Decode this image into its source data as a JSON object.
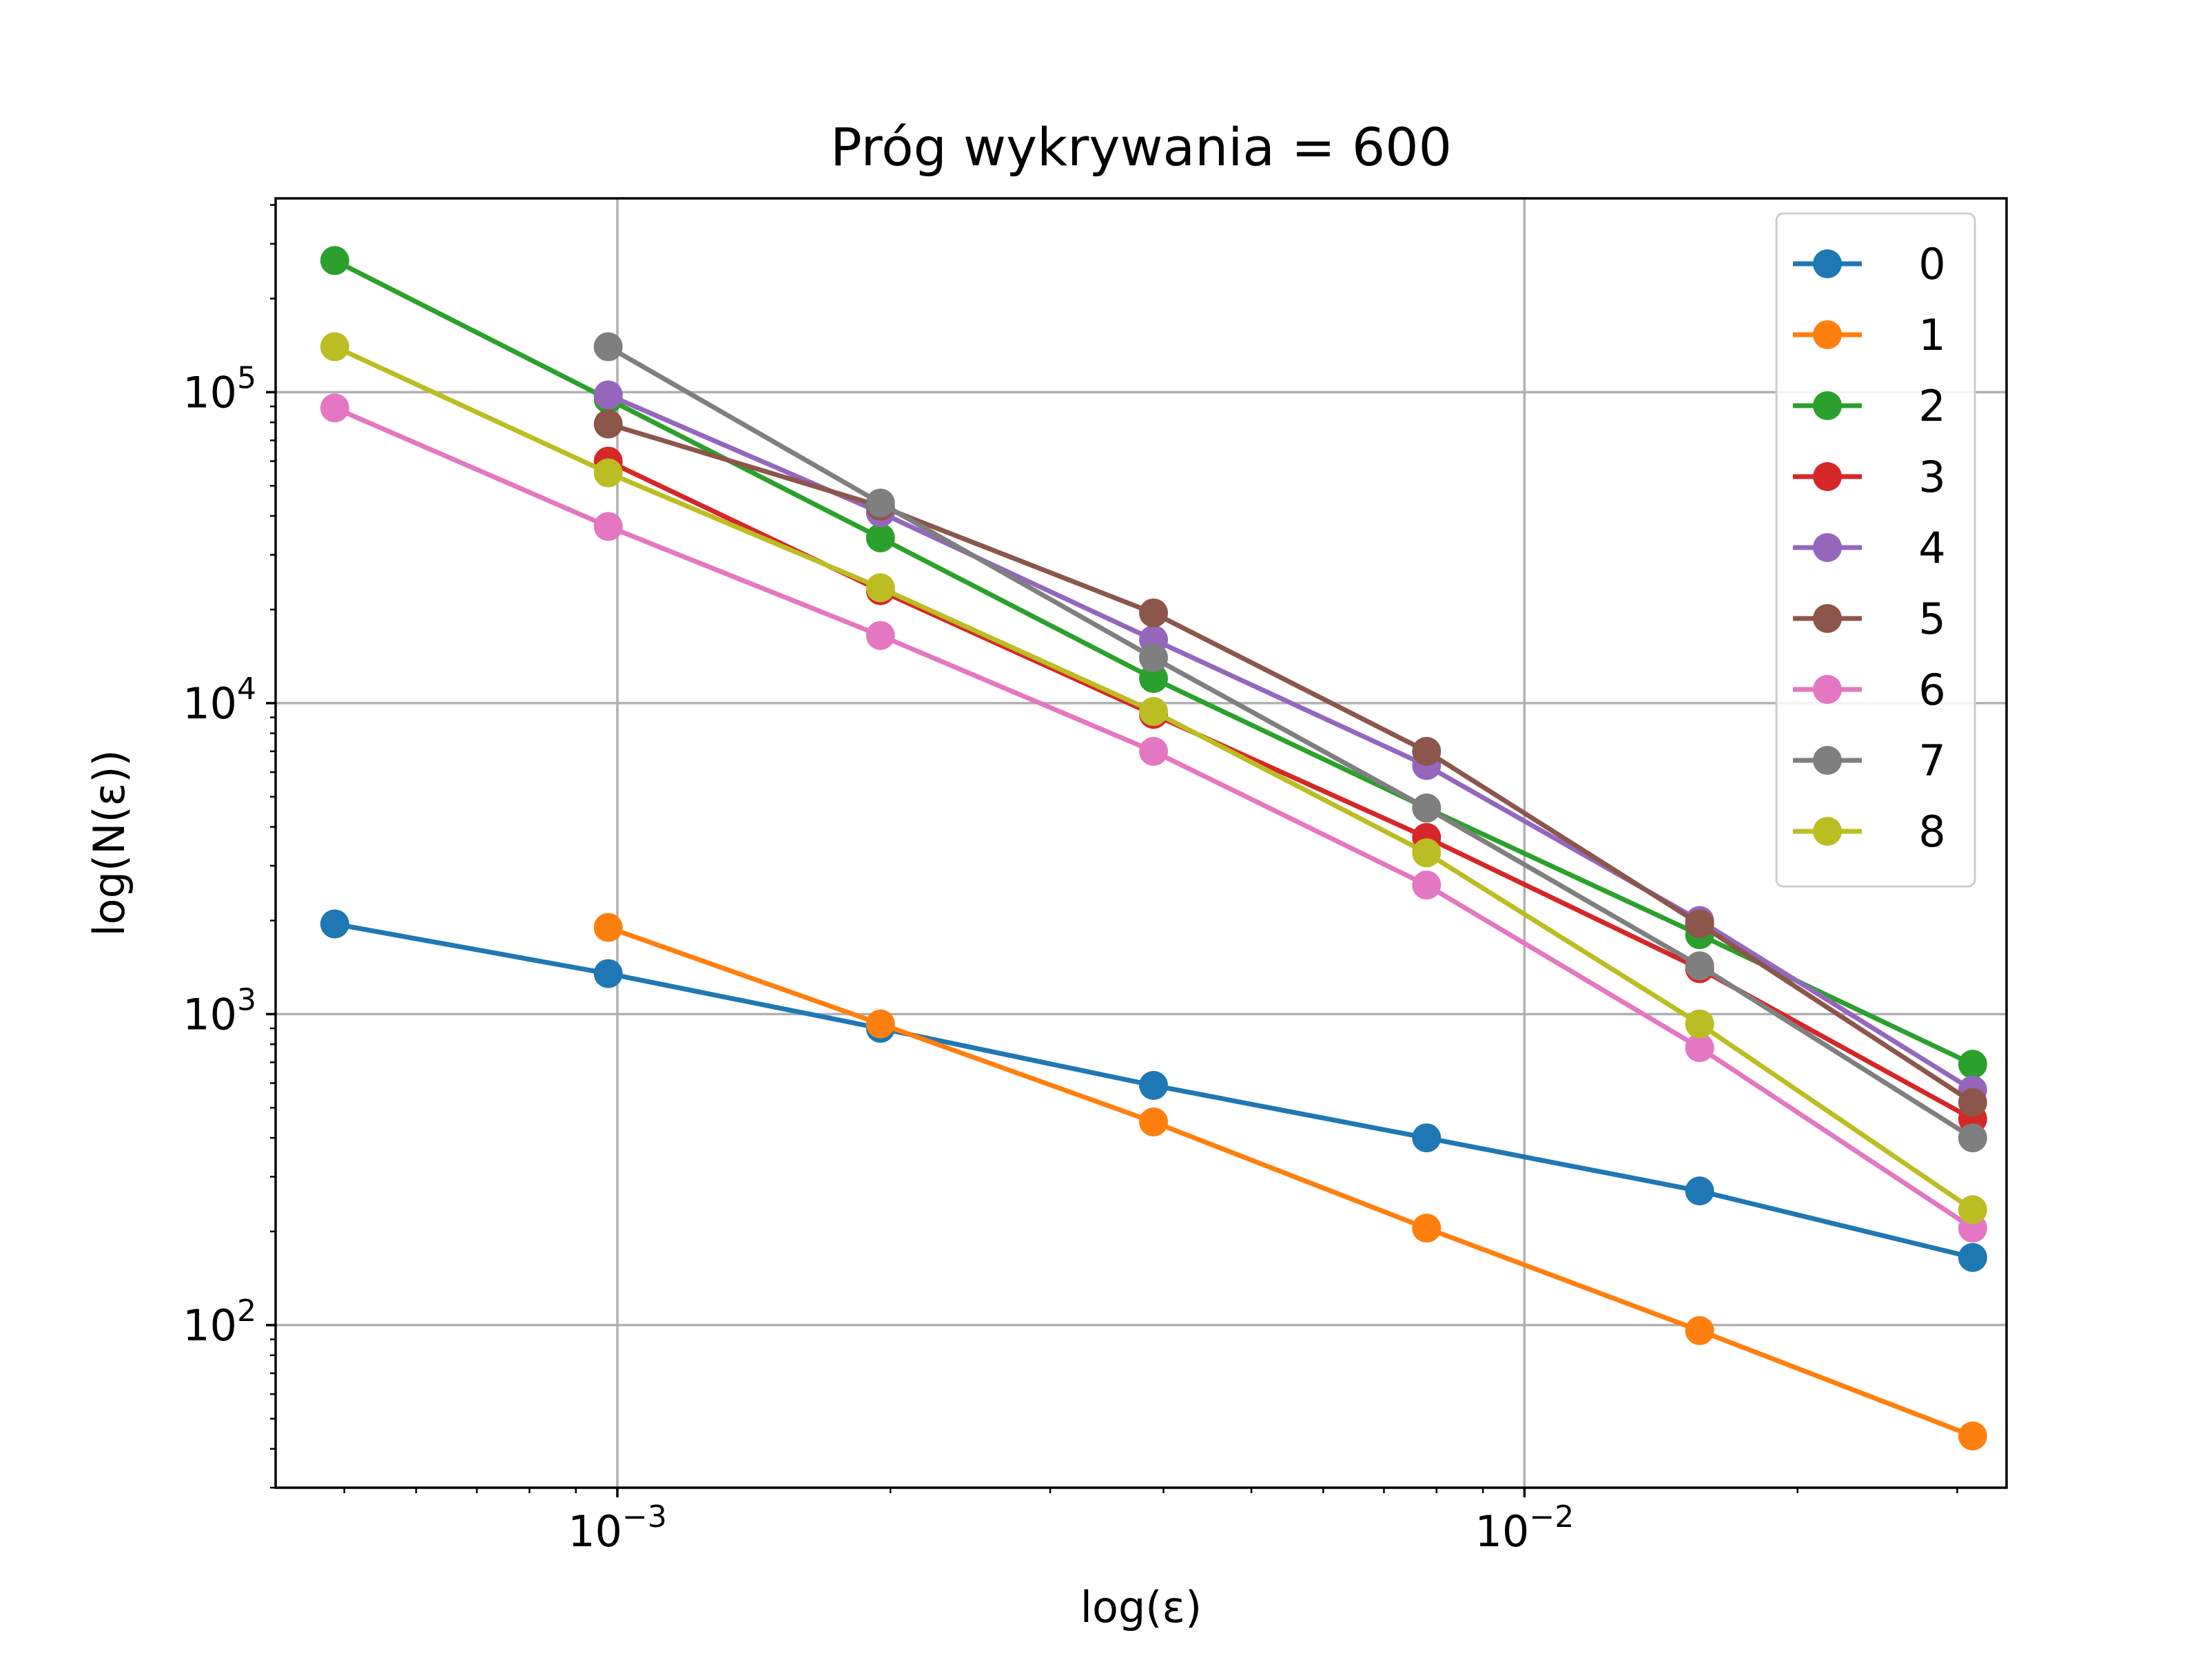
{
  "chart_data": {
    "type": "line",
    "title": "Próg wykrywania = 600",
    "xlabel": "log(ε)",
    "ylabel": "log(N(ε))",
    "xscale": "log",
    "yscale": "log",
    "xlim": [
      0.00042,
      0.034
    ],
    "ylim": [
      30,
      420000
    ],
    "grid": true,
    "legend_position": "top-right",
    "x_major_ticks": [
      {
        "value": 0.001,
        "base": "10",
        "exp": "−3"
      },
      {
        "value": 0.01,
        "base": "10",
        "exp": "−2"
      }
    ],
    "y_major_ticks": [
      {
        "value": 100,
        "base": "10",
        "exp": "2"
      },
      {
        "value": 1000,
        "base": "10",
        "exp": "3"
      },
      {
        "value": 10000,
        "base": "10",
        "exp": "4"
      },
      {
        "value": 100000,
        "base": "10",
        "exp": "5"
      }
    ],
    "series": [
      {
        "name": "0",
        "color": "#1f77b4",
        "x": [
          0.000488,
          0.000977,
          0.00195,
          0.0039,
          0.0078,
          0.0156,
          0.0312
        ],
        "y": [
          1950,
          1350,
          900,
          590,
          400,
          270,
          165
        ]
      },
      {
        "name": "1",
        "color": "#ff7f0e",
        "x": [
          0.000977,
          0.00195,
          0.0039,
          0.0078,
          0.0156,
          0.0312
        ],
        "y": [
          1900,
          930,
          450,
          205,
          96,
          44
        ]
      },
      {
        "name": "2",
        "color": "#2ca02c",
        "x": [
          0.000488,
          0.000977,
          0.00195,
          0.0039,
          0.0078,
          0.0156,
          0.0312
        ],
        "y": [
          265000,
          95000,
          34000,
          12000,
          4600,
          1800,
          690
        ]
      },
      {
        "name": "3",
        "color": "#d62728",
        "x": [
          0.000977,
          0.00195,
          0.0039,
          0.0078,
          0.0156,
          0.0312
        ],
        "y": [
          60000,
          23000,
          9200,
          3700,
          1400,
          460
        ]
      },
      {
        "name": "4",
        "color": "#9467bd",
        "x": [
          0.000977,
          0.00195,
          0.0039,
          0.0078,
          0.0156,
          0.0312
        ],
        "y": [
          98000,
          41000,
          16000,
          6300,
          2000,
          570
        ]
      },
      {
        "name": "5",
        "color": "#8c564b",
        "x": [
          0.000977,
          0.00195,
          0.0039,
          0.0078,
          0.0156,
          0.0312
        ],
        "y": [
          79000,
          43000,
          19500,
          7000,
          1950,
          520
        ]
      },
      {
        "name": "6",
        "color": "#e377c2",
        "x": [
          0.000488,
          0.000977,
          0.00195,
          0.0039,
          0.0078,
          0.0156,
          0.0312
        ],
        "y": [
          89000,
          37000,
          16500,
          7000,
          2600,
          780,
          205
        ]
      },
      {
        "name": "7",
        "color": "#7f7f7f",
        "x": [
          0.000977,
          0.00195,
          0.0039,
          0.0078,
          0.0156,
          0.0312
        ],
        "y": [
          140000,
          44000,
          14000,
          4600,
          1430,
          400
        ]
      },
      {
        "name": "8",
        "color": "#bcbd22",
        "x": [
          0.000488,
          0.000977,
          0.00195,
          0.0039,
          0.0078,
          0.0156,
          0.0312
        ],
        "y": [
          140000,
          55000,
          23500,
          9400,
          3300,
          930,
          235
        ]
      }
    ]
  }
}
